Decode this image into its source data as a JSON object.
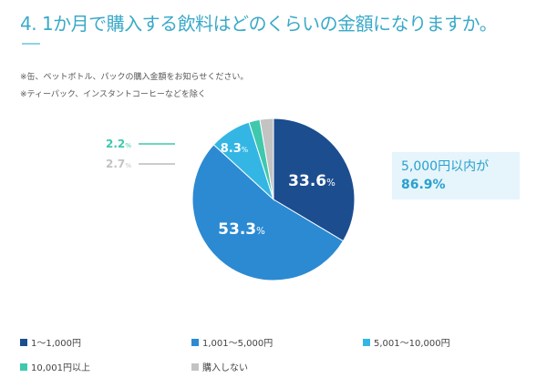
{
  "title": "4. 1か月で購入する飲料はどのくらいの金額になりますか。",
  "notes": [
    "※缶、ペットボトル、パックの購入金額をお知らせください。",
    "※ティーパック、インスタントコーヒーなどを除く"
  ],
  "callout": {
    "line1": "5,000円以内が",
    "line2": "86.9%"
  },
  "chart_data": {
    "type": "pie",
    "start": "top",
    "direction": "clockwise",
    "categories": [
      "1～1,000円",
      "1,001～5,000円",
      "5,001～10,000円",
      "10,001円以上",
      "購入しない"
    ],
    "values": [
      33.6,
      53.3,
      8.3,
      2.2,
      2.7
    ],
    "labels": [
      "33.6",
      "53.3",
      "8.3",
      "2.2",
      "2.7"
    ],
    "unit": "%",
    "colors": [
      "#1b4d8f",
      "#2b8ad2",
      "#34b6e4",
      "#3ec9ad",
      "#c3c3c3"
    ],
    "legend_position": "bottom"
  }
}
